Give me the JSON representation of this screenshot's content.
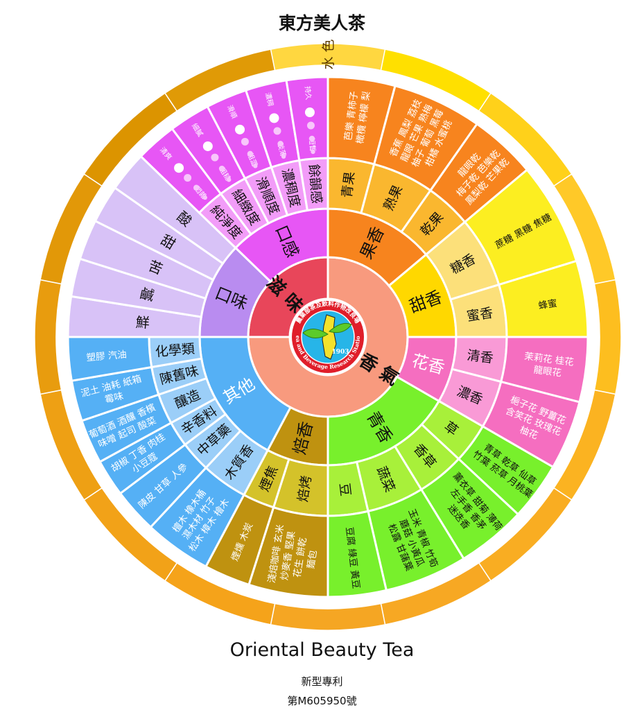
{
  "title": "東方美人茶",
  "subtitle_en": "Oriental Beauty Tea",
  "patent_label": "新型專利",
  "patent_number": "第M605950號",
  "outer_ring": {
    "label": "水色",
    "colors": [
      "#FFD740",
      "#FFE000",
      "#FFD11A",
      "#FFC928",
      "#FDBE1F",
      "#FBB321",
      "#F9AD22",
      "#F7A823",
      "#F5A623",
      "#F5A31A",
      "#F2A218",
      "#EEA014",
      "#E89C0E",
      "#E29808",
      "#DC9400",
      "#E09A06"
    ]
  },
  "logo": {
    "text_top": "農業部茶及飲料作物改良場",
    "text_bottom": "Tea and Beverage Research Station",
    "year": "1903",
    "ring_color": "#E01E2A",
    "disc_color": "#27B5E8"
  },
  "wheel": [
    {
      "name": "滋味",
      "color": "#E8465A",
      "groups": [
        {
          "name": "口味",
          "color": "#B98CF0",
          "sub_color": "#D8C2F7",
          "subs": [
            {
              "name": "鮮"
            },
            {
              "name": "鹹"
            },
            {
              "name": "苦"
            },
            {
              "name": "甜"
            },
            {
              "name": "酸"
            }
          ]
        },
        {
          "name": "口感",
          "color": "#E756F5",
          "sub_color": "#F29CF8",
          "item_color": "#E756F5",
          "item_text": "#ffffff",
          "subs": [
            {
              "name": "純淨度",
              "high": "清爽",
              "low": "悶雜"
            },
            {
              "name": "細緻度",
              "high": "細膩",
              "low": "粗糙"
            },
            {
              "name": "滑順度",
              "high": "滑順",
              "low": "粗澀"
            },
            {
              "name": "濃稠度",
              "high": "濃稠",
              "low": "淡薄"
            },
            {
              "name": "餘韻感",
              "high": "持久",
              "low": "短暫"
            }
          ]
        }
      ]
    },
    {
      "name": "香氣",
      "color": "#F89A7E",
      "groups": [
        {
          "name": "果香",
          "color": "#F7841E",
          "sub_color": "#FAB72F",
          "item_color": "#F7841E",
          "item_text": "#ffffff",
          "subs": [
            {
              "name": "青果",
              "items": [
                "芭樂 青柿子",
                "橄欖 檸檬 梨"
              ]
            },
            {
              "name": "熟果",
              "items": [
                "香蕉 鳳梨 荔枝",
                "龍眼 芒果 熟梅",
                "柚子 葡萄 黑莓",
                "柑橘 水蜜桃"
              ]
            },
            {
              "name": "乾果",
              "items": [
                "龍眼乾",
                "梅子乾 芭樂乾",
                "鳳梨乾 芒果乾"
              ]
            }
          ]
        },
        {
          "name": "甜香",
          "color": "#FFD800",
          "sub_color": "#FCE07A",
          "item_color": "#FCEE21",
          "item_text": "#111111",
          "subs": [
            {
              "name": "糖香",
              "items": [
                "蔗糖 黑糖 焦糖"
              ]
            },
            {
              "name": "蜜香",
              "items": [
                "蜂蜜"
              ]
            }
          ]
        },
        {
          "name": "花香",
          "color": "#F56EC0",
          "sub_color": "#F99AD6",
          "item_color": "#F56EC0",
          "item_text": "#ffffff",
          "label_text": "#ffffff",
          "subs": [
            {
              "name": "清香",
              "items": [
                "茉莉花 桂花",
                "龍眼花"
              ]
            },
            {
              "name": "濃香",
              "items": [
                "梔子花 野薑花",
                "含笑花 玫瑰花",
                "柚花"
              ]
            }
          ]
        },
        {
          "name": "青香",
          "color": "#78F02C",
          "sub_color": "#A8F03A",
          "item_color": "#78F02C",
          "item_text": "#111111",
          "subs": [
            {
              "name": "草",
              "items": [
                "青草 乾草 仙草",
                "竹葉 菸草 月桃葉"
              ]
            },
            {
              "name": "香草",
              "items": [
                "薰衣草 甜菊 薄荷",
                "左手香 香茅",
                "迷迭香"
              ]
            },
            {
              "name": "蔬菜",
              "items": [
                "玉米 青椒 竹筍",
                "蘑菇 小黃瓜",
                "松露 甘藷葉"
              ]
            },
            {
              "name": "豆",
              "items": [
                "豆腐 綠豆 黃豆"
              ]
            }
          ]
        },
        {
          "name": "焙香",
          "color": "#BF9210",
          "sub_color": "#D4C22A",
          "item_color": "#BF9210",
          "item_text": "#ffffff",
          "subs": [
            {
              "name": "焙烤",
              "items": [
                "淺焙咖啡 玄米",
                "炒麥香 堅果",
                "花生 餅乾",
                "麵包"
              ]
            },
            {
              "name": "煙焦",
              "items": [
                "煙燻 木炭"
              ]
            }
          ]
        },
        {
          "name": "其他",
          "color": "#55B0F5",
          "sub_color": "#9BCEF8",
          "item_color": "#55B0F5",
          "item_text": "#ffffff",
          "label_text": "#ffffff",
          "subs": [
            {
              "name": "木質香",
              "items": [
                "檀木 橡木桶",
                "濕木材 竹子",
                "松木 樟木 檜木"
              ]
            },
            {
              "name": "中草藥",
              "items": [
                "陳皮 甘草 人參"
              ]
            },
            {
              "name": "辛香料",
              "items": [
                "胡椒 丁香 肉桂",
                "小豆蔻"
              ]
            },
            {
              "name": "釀造",
              "items": [
                "葡萄酒 酒釀 香檳",
                "味噌 起司 酸菜"
              ]
            },
            {
              "name": "陳舊味",
              "items": [
                "泥土 油耗 紙箱",
                "霉味"
              ]
            },
            {
              "name": "化學類",
              "items": [
                "塑膠 汽油"
              ]
            }
          ]
        }
      ]
    }
  ]
}
